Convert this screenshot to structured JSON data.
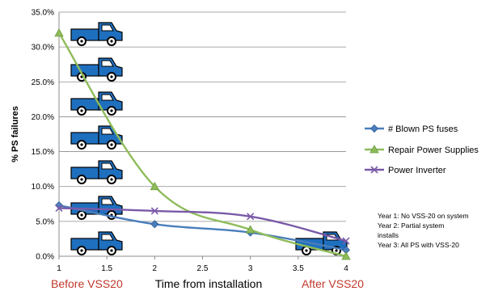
{
  "chart_data": {
    "type": "line",
    "ylabel": "% PS failures",
    "xlabel": "Time from installation",
    "xlim": [
      1,
      4
    ],
    "ylim": [
      0,
      35
    ],
    "x_ticks": [
      "1",
      "1.5",
      "2",
      "2.5",
      "3",
      "3.5",
      "4"
    ],
    "y_ticks": [
      "0.0%",
      "5.0%",
      "10.0%",
      "15.0%",
      "20.0%",
      "25.0%",
      "30.0%",
      "35.0%"
    ],
    "grid": "horizontal",
    "legend_position": "right",
    "series": [
      {
        "name": "# Blown PS fuses",
        "color": "#4a7ebb",
        "marker": "diamond",
        "x": [
          1,
          2,
          3,
          4
        ],
        "y": [
          7.3,
          4.6,
          3.4,
          0.9
        ]
      },
      {
        "name": "Repair Power Supplies",
        "color": "#8fbc5a",
        "marker": "triangle",
        "x": [
          1,
          2,
          3,
          4
        ],
        "y": [
          32.0,
          10.0,
          3.8,
          0.0
        ]
      },
      {
        "name": "Power Inverter",
        "color": "#7a5aa8",
        "marker": "x",
        "x": [
          1,
          2,
          3,
          4
        ],
        "y": [
          6.9,
          6.5,
          5.7,
          2.2
        ]
      }
    ],
    "annotations": {
      "left_label": "Before VSS20",
      "right_label": "After VSS20",
      "notes": [
        "Year 1: No VSS-20 on system",
        "Year 2: Partial system",
        "installs",
        "Year 3: All PS with VSS-20"
      ]
    },
    "truck_icon": "truck-icon",
    "truck_color": "#1f6fbf"
  }
}
